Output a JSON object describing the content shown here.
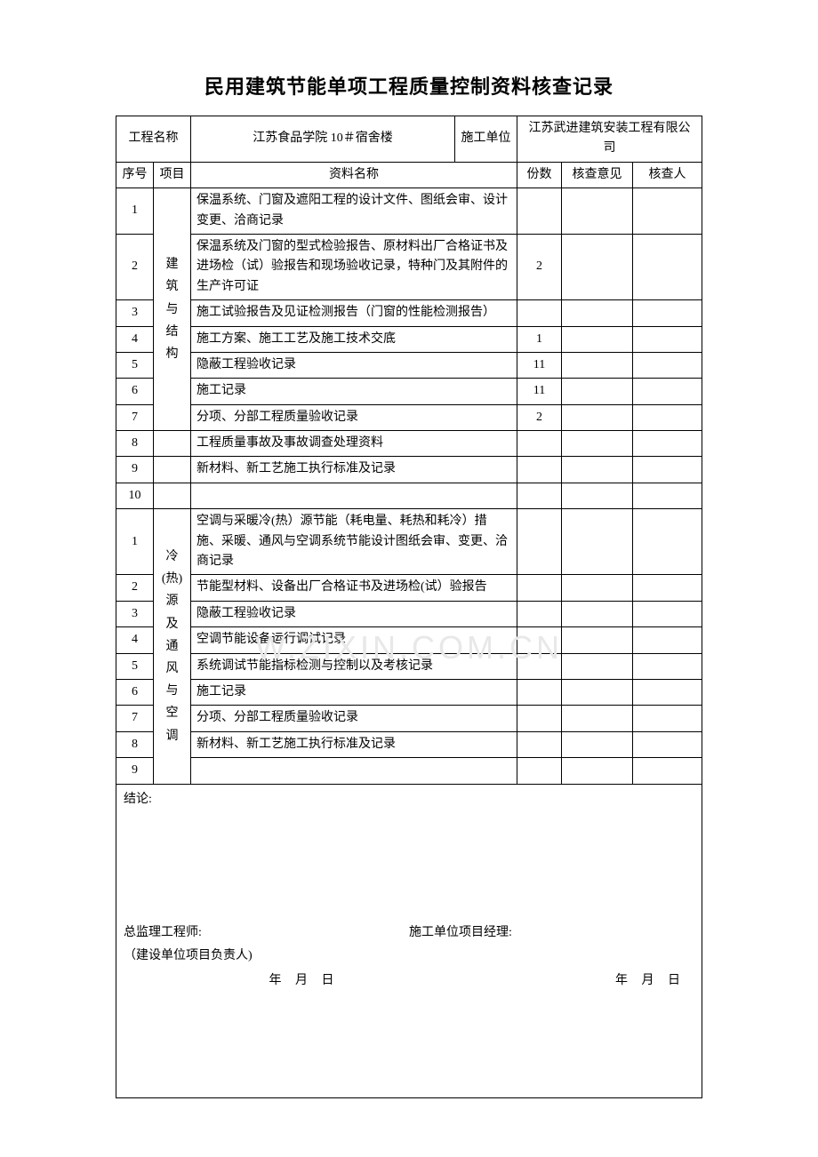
{
  "title": "民用建筑节能单项工程质量控制资料核查记录",
  "header": {
    "project_name_label": "工程名称",
    "project_name_value": "江苏食品学院 10＃宿舍楼",
    "construction_unit_label": "施工单位",
    "construction_unit_value": "江苏武进建筑安装工程有限公司",
    "seq_label": "序号",
    "proj_label": "项目",
    "material_label": "资料名称",
    "copies_label": "份数",
    "opinion_label": "核查意见",
    "checker_label": "核查人"
  },
  "section1": {
    "label": "建筑与结构",
    "rows": [
      {
        "seq": "1",
        "name": "保温系统、门窗及遮阳工程的设计文件、图纸会审、设计变更、洽商记录",
        "copies": ""
      },
      {
        "seq": "2",
        "name": "保温系统及门窗的型式检验报告、原材料出厂合格证书及进场检（试）验报告和现场验收记录，特种门及其附件的生产许可证",
        "copies": "2"
      },
      {
        "seq": "3",
        "name": "施工试验报告及见证检测报告（门窗的性能检测报告）",
        "copies": ""
      },
      {
        "seq": "4",
        "name": "施工方案、施工工艺及施工技术交底",
        "copies": "1"
      },
      {
        "seq": "5",
        "name": "隐蔽工程验收记录",
        "copies": "11"
      },
      {
        "seq": "6",
        "name": "施工记录",
        "copies": "11"
      },
      {
        "seq": "7",
        "name": "分项、分部工程质量验收记录",
        "copies": "2"
      },
      {
        "seq": "8",
        "name": "工程质量事故及事故调查处理资料",
        "copies": ""
      },
      {
        "seq": "9",
        "name": "新材料、新工艺施工执行标准及记录",
        "copies": ""
      },
      {
        "seq": "10",
        "name": "",
        "copies": ""
      }
    ]
  },
  "section2": {
    "label": "冷（热）源及通风与空调",
    "rows": [
      {
        "seq": "1",
        "name": "空调与采暖冷(热）源节能（耗电量、耗热和耗冷）措施、采暖、通风与空调系统节能设计图纸会审、变更、洽商记录",
        "copies": ""
      },
      {
        "seq": "2",
        "name": "节能型材料、设备出厂合格证书及进场检(试）验报告",
        "copies": ""
      },
      {
        "seq": "3",
        "name": "隐蔽工程验收记录",
        "copies": ""
      },
      {
        "seq": "4",
        "name": "空调节能设备运行调试记录",
        "copies": ""
      },
      {
        "seq": "5",
        "name": "系统调试节能指标检测与控制以及考核记录",
        "copies": ""
      },
      {
        "seq": "6",
        "name": "施工记录",
        "copies": ""
      },
      {
        "seq": "7",
        "name": "分项、分部工程质量验收记录",
        "copies": ""
      },
      {
        "seq": "8",
        "name": "新材料、新工艺施工执行标准及记录",
        "copies": ""
      },
      {
        "seq": "9",
        "name": "",
        "copies": ""
      }
    ]
  },
  "conclusion": {
    "label": "结论:",
    "chief_engineer_label": "总监理工程师:",
    "project_owner_label": "（建设单位项目负责人)",
    "project_manager_label": "施工单位项目经理:",
    "date_left": "年 月 日",
    "date_right": "年 月 日"
  },
  "watermark": "W.ZIXIN.COM.CN"
}
